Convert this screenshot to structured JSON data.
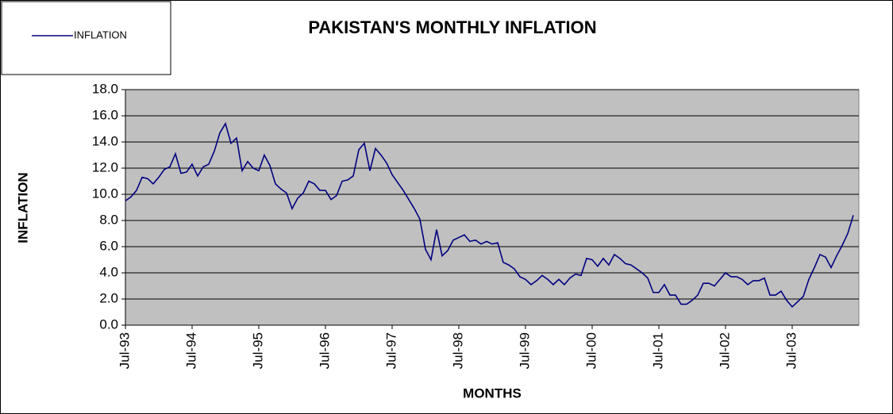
{
  "chart_data": {
    "type": "line",
    "title": "PAKISTAN'S MONTHLY INFLATION",
    "x_label": "MONTHS",
    "y_label": "INFLATION",
    "categories": [
      "Jul-93",
      null,
      null,
      null,
      null,
      null,
      null,
      null,
      null,
      null,
      null,
      null,
      "Jul-94",
      null,
      null,
      null,
      null,
      null,
      null,
      null,
      null,
      null,
      null,
      null,
      "Jul-95",
      null,
      null,
      null,
      null,
      null,
      null,
      null,
      null,
      null,
      null,
      null,
      "Jul-96",
      null,
      null,
      null,
      null,
      null,
      null,
      null,
      null,
      null,
      null,
      null,
      "Jul-97",
      null,
      null,
      null,
      null,
      null,
      null,
      null,
      null,
      null,
      null,
      null,
      "Jul-98",
      null,
      null,
      null,
      null,
      null,
      null,
      null,
      null,
      null,
      null,
      null,
      "Jul-99",
      null,
      null,
      null,
      null,
      null,
      null,
      null,
      null,
      null,
      null,
      null,
      "Jul-00",
      null,
      null,
      null,
      null,
      null,
      null,
      null,
      null,
      null,
      null,
      null,
      "Jul-01",
      null,
      null,
      null,
      null,
      null,
      null,
      null,
      null,
      null,
      null,
      null,
      "Jul-02",
      null,
      null,
      null,
      null,
      null,
      null,
      null,
      null,
      null,
      null,
      null,
      "Jul-03",
      null,
      null,
      null,
      null,
      null,
      null,
      null,
      null,
      null,
      null,
      null
    ],
    "series": [
      {
        "name": "INFLATION",
        "color": "#000080",
        "values": [
          9.5,
          9.8,
          10.3,
          11.3,
          11.2,
          10.8,
          11.3,
          11.9,
          12.1,
          13.1,
          11.6,
          11.7,
          12.3,
          11.4,
          12.1,
          12.3,
          13.3,
          14.7,
          15.4,
          13.9,
          14.3,
          11.8,
          12.5,
          12.0,
          11.8,
          13.0,
          12.2,
          10.8,
          10.4,
          10.1,
          8.9,
          9.7,
          10.1,
          11.0,
          10.8,
          10.3,
          10.3,
          9.6,
          9.9,
          11.0,
          11.1,
          11.4,
          13.4,
          13.9,
          11.8,
          13.5,
          13.0,
          12.4,
          11.5,
          10.9,
          10.3,
          9.6,
          8.9,
          8.1,
          5.8,
          5.0,
          7.3,
          5.3,
          5.7,
          6.5,
          6.7,
          6.9,
          6.4,
          6.5,
          6.2,
          6.4,
          6.2,
          6.3,
          4.8,
          4.6,
          4.3,
          3.7,
          3.5,
          3.1,
          3.4,
          3.8,
          3.5,
          3.1,
          3.5,
          3.1,
          3.6,
          3.9,
          3.8,
          5.1,
          5.0,
          4.5,
          5.1,
          4.6,
          5.4,
          5.1,
          4.7,
          4.6,
          4.3,
          4.0,
          3.6,
          2.5,
          2.5,
          3.1,
          2.3,
          2.3,
          1.6,
          1.6,
          1.9,
          2.3,
          3.2,
          3.2,
          3.0,
          3.5,
          4.0,
          3.7,
          3.7,
          3.5,
          3.1,
          3.4,
          3.4,
          3.6,
          2.3,
          2.3,
          2.6,
          1.9,
          1.4,
          1.8,
          2.2,
          3.5,
          4.4,
          5.4,
          5.2,
          4.4,
          5.3,
          6.1,
          7.0,
          8.4
        ]
      }
    ],
    "ylim": [
      0,
      18
    ],
    "yticks": [
      {
        "value": 0,
        "label": "0.0"
      },
      {
        "value": 2,
        "label": "2.0"
      },
      {
        "value": 4,
        "label": "4.0"
      },
      {
        "value": 6,
        "label": "6.0"
      },
      {
        "value": 8,
        "label": "8.0"
      },
      {
        "value": 10,
        "label": "10.0"
      },
      {
        "value": 12,
        "label": "12.0"
      },
      {
        "value": 14,
        "label": "14.0"
      },
      {
        "value": 16,
        "label": "16.0"
      },
      {
        "value": 18,
        "label": "18.0"
      }
    ],
    "grid": true,
    "plot_background": "#c0c0c0",
    "legend": "top-left"
  }
}
